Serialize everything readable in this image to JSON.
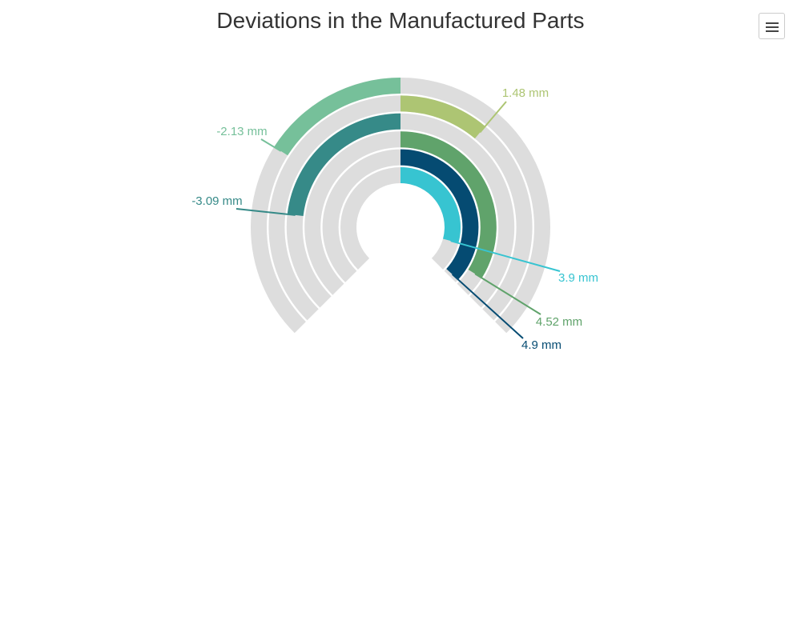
{
  "title": "Deviations in the Manufactured Parts",
  "menu": {
    "icon": "hamburger-menu-icon"
  },
  "chart_data": {
    "type": "radial-bar",
    "title": "Deviations in the Manufactured Parts",
    "unit": "mm",
    "scale": {
      "min": -5,
      "max": 5,
      "track_start_deg": -135,
      "track_end_deg": 135,
      "zero_deg": 0
    },
    "track_color": "#dddddd",
    "series": [
      {
        "label": "-2.13 mm",
        "value": -2.13,
        "color": "#76c09a"
      },
      {
        "label": "1.48 mm",
        "value": 1.48,
        "color": "#adc573"
      },
      {
        "label": "-3.09 mm",
        "value": -3.09,
        "color": "#368a88"
      },
      {
        "label": "4.52 mm",
        "value": 4.52,
        "color": "#60a36b"
      },
      {
        "label": "4.9 mm",
        "value": 4.9,
        "color": "#054b72"
      },
      {
        "label": "3.9 mm",
        "value": 3.9,
        "color": "#37c4d1"
      }
    ]
  }
}
